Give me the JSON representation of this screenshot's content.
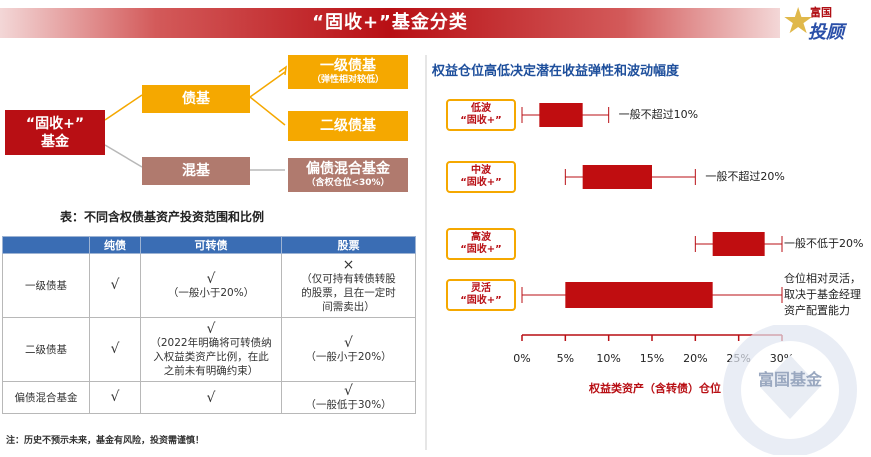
{
  "header": {
    "title": "“固收+”基金分类",
    "logo_small": "富国",
    "logo_big": "投顾"
  },
  "tree": {
    "root": {
      "line1": "“固收+”",
      "line2": "基金"
    },
    "bond_fund": "债基",
    "mixed_fund": "混基",
    "level1": {
      "label": "一级债基",
      "sub": "（弹性相对较低）"
    },
    "level2": {
      "label": "二级债基"
    },
    "mixed_bond": {
      "label": "偏债混合基金",
      "sub": "（含权仓位<30%）"
    }
  },
  "table": {
    "caption": "表：不同含权债基资产投资范围和比例",
    "headers": [
      "",
      "纯债",
      "可转债",
      "股票"
    ],
    "rows": [
      {
        "name": "一级债基",
        "pure": "√",
        "convertible": [
          "√",
          "（一般小于20%）"
        ],
        "stock": [
          "×",
          "（仅可持有转债转股",
          "的股票，且在一定时",
          "间需卖出）"
        ]
      },
      {
        "name": "二级债基",
        "pure": "√",
        "convertible": [
          "√",
          "（2022年明确将可转债纳",
          "入权益类资产比例，在此",
          "之前未有明确约束）"
        ],
        "stock": [
          "√",
          "（一般小于20%）"
        ]
      },
      {
        "name": "偏债混合基金",
        "pure": "√",
        "convertible": [
          "√"
        ],
        "stock": [
          "√",
          "（一般低于30%）"
        ]
      }
    ]
  },
  "footnote": "注：历史不预示未来，基金有风险，投资需谨慎！",
  "chart_title": "权益仓位高低决定潜在收益弹性和波动幅度",
  "chart_data": {
    "type": "boxplot-range",
    "x_ticks": [
      "0%",
      "5%",
      "10%",
      "15%",
      "20%",
      "25%",
      "30%"
    ],
    "xlim": [
      0,
      30
    ],
    "xlabel": "权益类资产（含转债）仓位",
    "series": [
      {
        "label": [
          "低波",
          "“固收+”"
        ],
        "whisker": [
          0,
          10
        ],
        "box": [
          2,
          7
        ],
        "note": [
          "一般不超过10%"
        ]
      },
      {
        "label": [
          "中波",
          "“固收+”"
        ],
        "whisker": [
          5,
          20
        ],
        "box": [
          7,
          15
        ],
        "note": [
          "一般不超过20%"
        ]
      },
      {
        "label": [
          "高波",
          "“固收+”"
        ],
        "whisker": [
          20,
          30
        ],
        "box": [
          22,
          28
        ],
        "note": [
          "一般不低于20%"
        ]
      },
      {
        "label": [
          "灵活",
          "“固收+”"
        ],
        "whisker": [
          0,
          30
        ],
        "box": [
          5,
          22
        ],
        "note": [
          "仓位相对灵活，",
          "取决于基金经理",
          "资产配置能力"
        ]
      }
    ]
  },
  "watermark": "富国基金",
  "colors": {
    "red": "#b80f14",
    "gold": "#f5a800",
    "blue": "#3a6db4",
    "brown": "#b07a6e"
  }
}
